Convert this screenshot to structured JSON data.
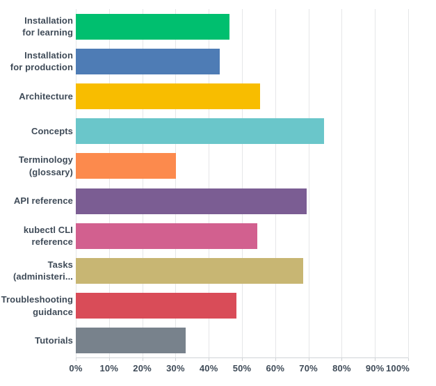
{
  "colors": {
    "background": "#FFFFFF",
    "text": "#3F4B58",
    "gridline": "#E5E6E8",
    "axis_line": "#CFD3D6"
  },
  "chart_data": {
    "type": "bar",
    "orientation": "horizontal",
    "title": "",
    "xlabel": "",
    "ylabel": "",
    "xlim": [
      0,
      100
    ],
    "grid": "vertical gridlines every 10%, light gray",
    "legend": "none",
    "x_tick_labels": [
      "0%",
      "10%",
      "20%",
      "30%",
      "40%",
      "50%",
      "60%",
      "70%",
      "80%",
      "90%",
      "100%"
    ],
    "categories": [
      "Installation for learning",
      "Installation for production",
      "Architecture",
      "Concepts",
      "Terminology (glossary)",
      "API reference",
      "kubectl CLI reference",
      "Tasks (administeri...",
      "Troubleshooting guidance",
      "Tutorials"
    ],
    "category_label_lines": [
      [
        "Installation",
        "for learning"
      ],
      [
        "Installation",
        "for production"
      ],
      [
        "Architecture"
      ],
      [
        "Concepts"
      ],
      [
        "Terminology",
        "(glossary)"
      ],
      [
        "API reference"
      ],
      [
        "kubectl CLI",
        "reference"
      ],
      [
        "Tasks",
        "(administeri..."
      ],
      [
        "Troubleshooting",
        "guidance"
      ],
      [
        "Tutorials"
      ]
    ],
    "values": [
      46.3,
      43.4,
      55.5,
      74.6,
      30.2,
      69.5,
      54.5,
      68.5,
      48.4,
      33.1
    ],
    "value_unit": "%",
    "bar_colors": [
      "#00BF6F",
      "#4E7CB5",
      "#F8BD00",
      "#6AC6CA",
      "#FC8A4D",
      "#7B5D93",
      "#D2608F",
      "#C8B673",
      "#D94C58",
      "#78828C"
    ]
  }
}
